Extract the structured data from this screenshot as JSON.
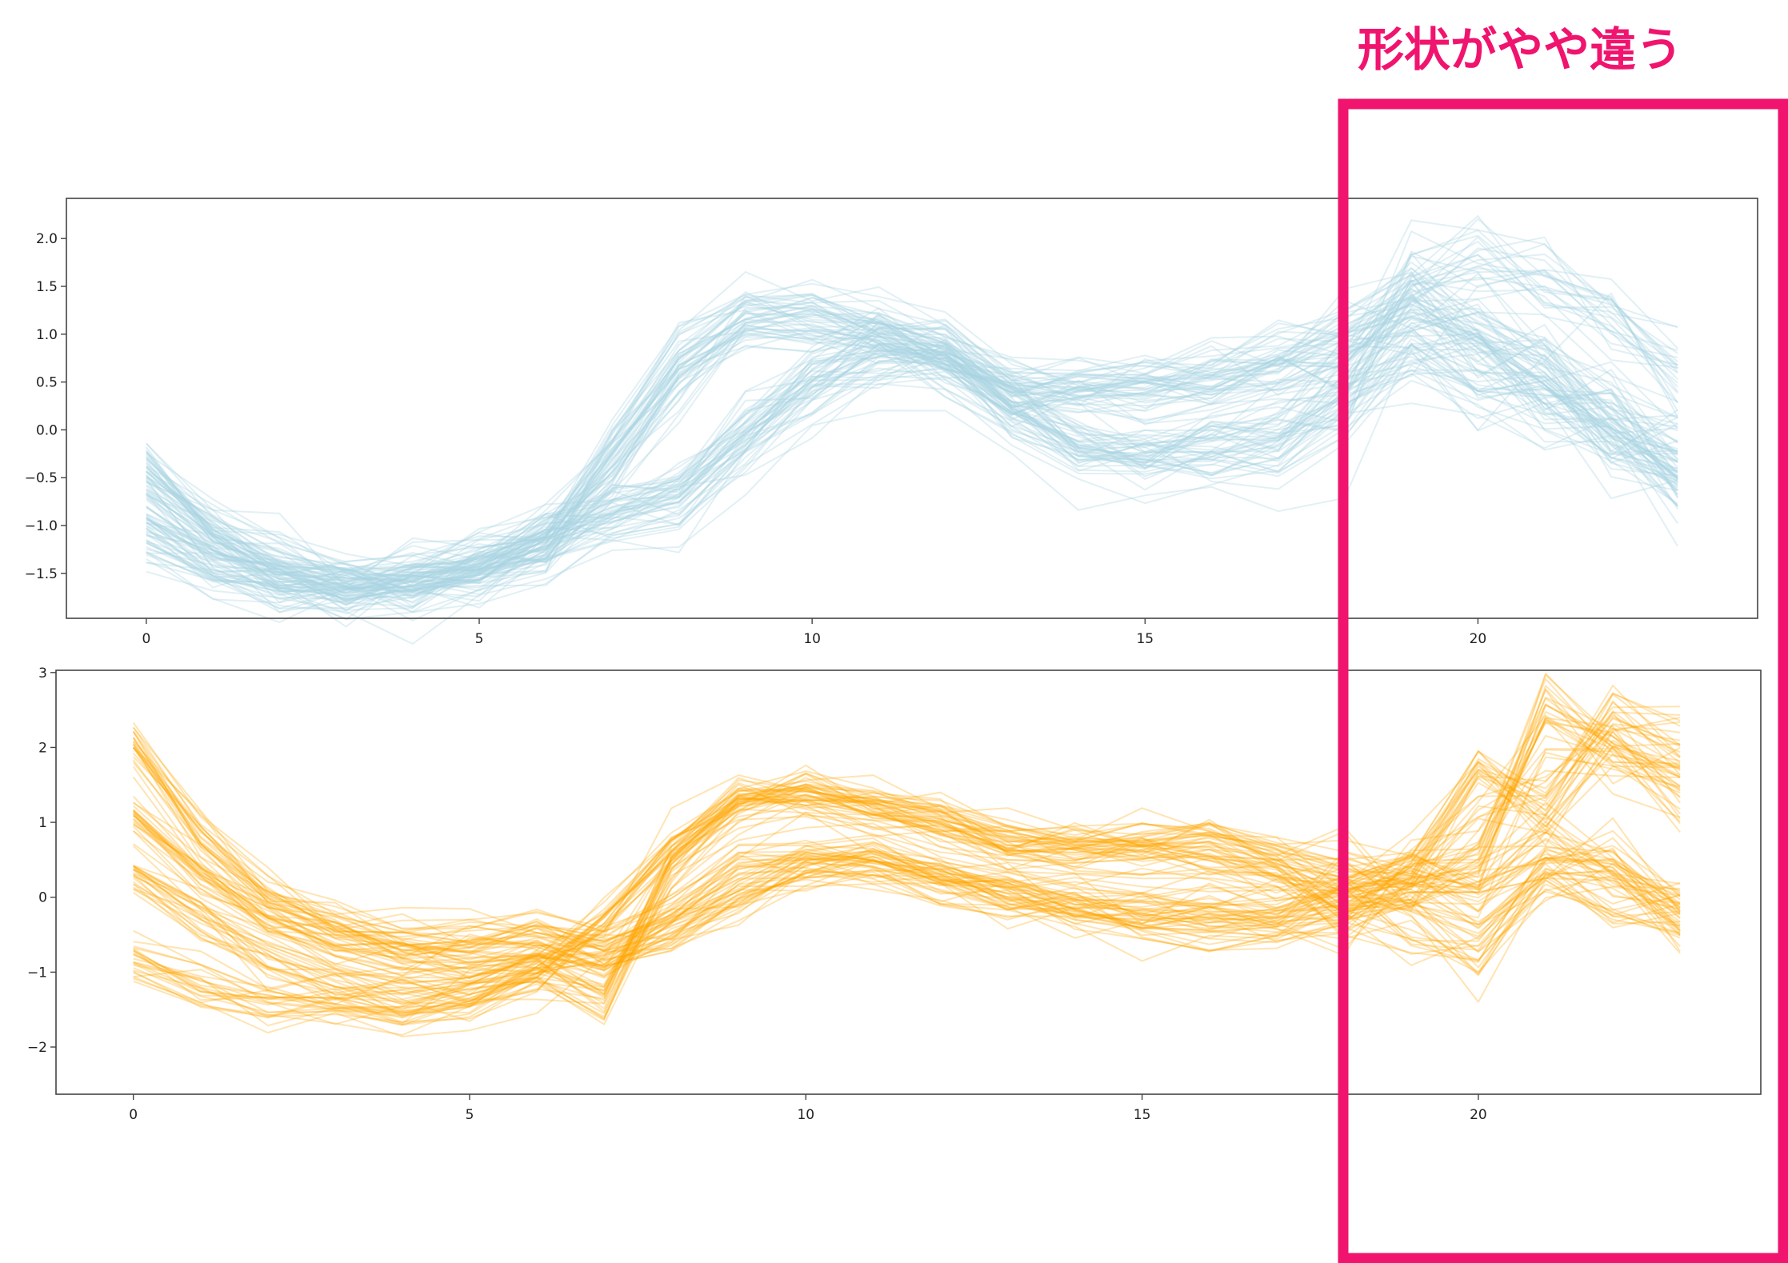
{
  "annotation": {
    "text": "形状がやや違う",
    "color": "#f0146e"
  },
  "chart_data": [
    {
      "type": "line",
      "title": "",
      "xlabel": "",
      "ylabel": "",
      "x": [
        0,
        1,
        2,
        3,
        4,
        5,
        6,
        7,
        8,
        9,
        10,
        11,
        12,
        13,
        14,
        15,
        16,
        17,
        18,
        19,
        20,
        21,
        22,
        23
      ],
      "xlim": [
        -1.2,
        24.2
      ],
      "ylim": [
        -1.97,
        2.42
      ],
      "xticks": [
        0,
        5,
        10,
        15,
        20
      ],
      "xtick_labels": [
        "0",
        "5",
        "10",
        "15",
        "20"
      ],
      "yticks": [
        2.0,
        1.5,
        1.0,
        0.5,
        0.0,
        -0.5,
        -1.0,
        -1.5
      ],
      "ytick_labels": [
        "2.0",
        "1.5",
        "1.0",
        "0.5",
        "0.0",
        "−0.5",
        "−1.0",
        "−1.5"
      ],
      "color": "#a9d5e2",
      "line_count": 100,
      "line_opacity": 0.35,
      "grid": false,
      "series": [
        {
          "values": [
            -1.0,
            -1.4,
            -1.6,
            -1.65,
            -1.6,
            -1.45,
            -1.2,
            -0.4,
            0.5,
            1.15,
            1.15,
            1.0,
            0.8,
            0.45,
            0.45,
            0.5,
            0.55,
            0.8,
            1.1,
            1.3,
            1.0,
            0.6,
            0.0,
            -0.5
          ]
        },
        {
          "values": [
            -0.5,
            -1.0,
            -1.4,
            -1.55,
            -1.6,
            -1.5,
            -1.25,
            -0.8,
            -0.6,
            0.0,
            0.6,
            0.9,
            0.8,
            0.3,
            -0.1,
            -0.2,
            -0.1,
            0.1,
            0.5,
            1.5,
            1.7,
            1.5,
            1.2,
            0.6
          ]
        },
        {
          "values": [
            -0.4,
            -1.1,
            -1.5,
            -1.6,
            -1.55,
            -1.4,
            -1.1,
            -0.9,
            -0.8,
            -0.2,
            0.4,
            0.8,
            0.75,
            0.2,
            -0.25,
            -0.3,
            -0.3,
            -0.3,
            0.2,
            0.8,
            0.5,
            0.3,
            0.0,
            -0.3
          ]
        },
        {
          "values": [
            -1.1,
            -1.45,
            -1.6,
            -1.7,
            -1.6,
            -1.5,
            -1.2,
            -0.2,
            0.8,
            1.2,
            1.2,
            1.05,
            0.85,
            0.4,
            0.4,
            0.45,
            0.5,
            0.6,
            0.8,
            1.2,
            0.9,
            0.5,
            -0.1,
            -0.6
          ]
        }
      ]
    },
    {
      "type": "line",
      "title": "",
      "xlabel": "",
      "ylabel": "",
      "x": [
        0,
        1,
        2,
        3,
        4,
        5,
        6,
        7,
        8,
        9,
        10,
        11,
        12,
        13,
        14,
        15,
        16,
        17,
        18,
        19,
        20,
        21,
        22,
        23
      ],
      "xlim": [
        -1.15,
        24.2
      ],
      "ylim": [
        -2.63,
        3.03
      ],
      "xticks": [
        0,
        5,
        10,
        15,
        20
      ],
      "xtick_labels": [
        "0",
        "5",
        "10",
        "15",
        "20"
      ],
      "yticks": [
        3,
        2,
        1,
        0,
        -1,
        -2
      ],
      "ytick_labels": [
        "3",
        "2",
        "1",
        "0",
        "−1",
        "−2"
      ],
      "color": "#ffa500",
      "line_count": 100,
      "line_opacity": 0.3,
      "grid": false,
      "series": [
        {
          "values": [
            -0.8,
            -1.2,
            -1.4,
            -1.5,
            -1.55,
            -1.4,
            -1.0,
            -0.3,
            0.7,
            1.3,
            1.35,
            1.2,
            1.0,
            0.7,
            0.75,
            0.8,
            0.8,
            0.6,
            0.3,
            0.2,
            0.1,
            0.7,
            0.2,
            -0.3
          ]
        },
        {
          "values": [
            1.0,
            0.3,
            -0.3,
            -0.6,
            -0.7,
            -0.8,
            -0.7,
            -0.8,
            -0.5,
            0.0,
            0.4,
            0.5,
            0.3,
            0.0,
            -0.2,
            -0.3,
            -0.4,
            -0.4,
            -0.2,
            0.2,
            0.5,
            2.4,
            2.0,
            1.5
          ]
        },
        {
          "values": [
            2.0,
            0.8,
            0.0,
            -0.4,
            -0.6,
            -0.6,
            -0.5,
            -0.7,
            -0.2,
            0.3,
            0.5,
            0.4,
            0.2,
            0.0,
            -0.1,
            -0.2,
            -0.2,
            -0.2,
            0.0,
            0.3,
            1.6,
            1.2,
            2.3,
            1.8
          ]
        },
        {
          "values": [
            0.3,
            -0.3,
            -0.8,
            -1.1,
            -1.2,
            -1.2,
            -1.0,
            -1.4,
            0.4,
            1.2,
            1.4,
            1.2,
            1.0,
            0.7,
            0.6,
            0.6,
            0.5,
            0.3,
            0.0,
            -0.3,
            -0.8,
            0.4,
            0.2,
            -0.2
          ]
        }
      ]
    }
  ]
}
